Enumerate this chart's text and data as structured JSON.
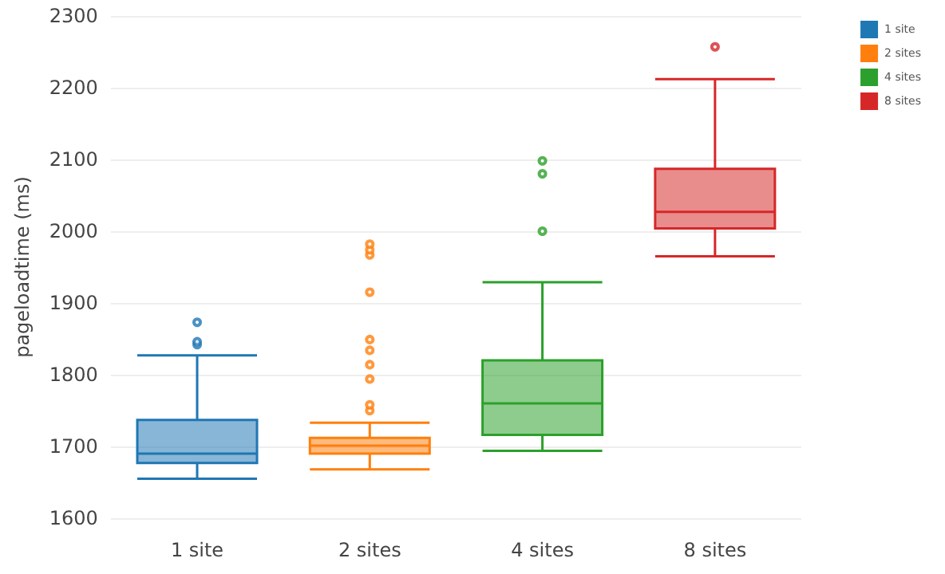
{
  "chart_data": {
    "type": "box",
    "ylabel": "pageloadtime (ms)",
    "categories": [
      "1 site",
      "2 sites",
      "4 sites",
      "8 sites"
    ],
    "ylim": [
      1600,
      2300
    ],
    "yticks": [
      1600,
      1700,
      1800,
      1900,
      2000,
      2100,
      2200,
      2300
    ],
    "grid": "y",
    "legend": "top right",
    "series": [
      {
        "name": "1 site",
        "color": "#1f77b4",
        "boxes": [
          {
            "low": 1655,
            "q1": 1677,
            "median": 1690,
            "q3": 1737,
            "high": 1827,
            "outliers": [
              1842,
              1846,
              1873
            ]
          },
          null,
          null,
          null
        ]
      },
      {
        "name": "2 sites",
        "color": "#ff7f0e",
        "boxes": [
          null,
          {
            "low": 1668,
            "q1": 1690,
            "median": 1701,
            "q3": 1712,
            "high": 1733,
            "outliers": [
              1750,
              1758,
              1794,
              1814,
              1834,
              1849,
              1915,
              1967,
              1974,
              1982
            ]
          },
          null,
          null
        ]
      },
      {
        "name": "4 sites",
        "color": "#2ca02c",
        "boxes": [
          null,
          null,
          {
            "low": 1694,
            "q1": 1716,
            "median": 1760,
            "q3": 1820,
            "high": 1929,
            "outliers": [
              2000,
              2080,
              2098
            ]
          },
          null
        ]
      },
      {
        "name": "8 sites",
        "color": "#d62728",
        "boxes": [
          null,
          null,
          null,
          {
            "low": 1965,
            "q1": 2004,
            "median": 2027,
            "q3": 2087,
            "high": 2212,
            "outliers": [
              2257
            ]
          }
        ]
      }
    ]
  }
}
